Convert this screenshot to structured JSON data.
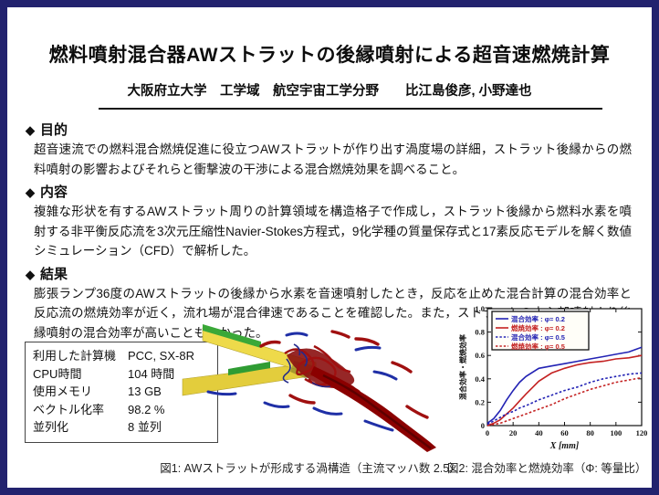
{
  "slide": {
    "title": "燃料噴射混合器AWストラットの後縁噴射による超音速燃焼計算",
    "authors": "大阪府立大学　工学域　航空宇宙工学分野　　比江島俊彦, 小野達也",
    "sections": [
      {
        "bullet": "◆",
        "heading": "目的",
        "body": "超音速流での燃料混合燃焼促進に役立つAWストラットが作り出す渦度場の詳細，ストラット後縁からの燃料噴射の影響およびそれらと衝撃波の干渉による混合燃焼効果を調べること。"
      },
      {
        "bullet": "◆",
        "heading": "内容",
        "body": "複雑な形状を有するAWストラット周りの計算領域を構造格子で作成し，ストラット後縁から燃料水素を噴射する非平衡反応流を3次元圧縮性Navier-Stokes方程式，9化学種の質量保存式と17素反応モデルを解く数値シミュレーション（CFD）で解析した。"
      },
      {
        "bullet": "◆",
        "heading": "結果",
        "body": "膨張ランプ36度のAWストラットの後縁から水素を音速噴射したとき，反応を止めた混合計算の混合効率と反応流の燃焼効率が近く，流れ場が混合律速であることを確認した。また，ストラットの中心部噴射より後縁噴射の混合効率が高いこともわかった。"
      }
    ],
    "stats_table": {
      "rows": [
        {
          "label": "利用した計算機",
          "value": "PCC, SX-8R"
        },
        {
          "label": "CPU時間",
          "value": "104 時間"
        },
        {
          "label": "使用メモリ",
          "value": "13 GB"
        },
        {
          "label": "ベクトル化率",
          "value": "98.2 %"
        },
        {
          "label": "並列化",
          "value": "8 並列"
        }
      ]
    },
    "figure1_caption": "図1: AWストラットが形成する渦構造（主流マッハ数 2.5）",
    "figure2_caption": "図2: 混合効率と燃焼効率（Φ: 等量比）"
  },
  "chart_data": {
    "type": "line",
    "title": "",
    "xlabel": "X [mm]",
    "ylabel": "混合効率・燃焼効率",
    "xlim": [
      0,
      120
    ],
    "ylim": [
      0,
      1.0
    ],
    "xticks": [
      0,
      20,
      40,
      60,
      80,
      100,
      120
    ],
    "yticks": [
      0,
      0.2,
      0.4,
      0.6,
      0.8,
      1.0
    ],
    "grid": false,
    "legend_position": "top-left",
    "x": [
      0,
      5,
      10,
      15,
      20,
      25,
      30,
      40,
      50,
      60,
      70,
      80,
      90,
      100,
      110,
      120
    ],
    "series": [
      {
        "name": "混合効率 : φ= 0.2",
        "color": "#2323b4",
        "style": "solid",
        "values": [
          0.02,
          0.06,
          0.13,
          0.22,
          0.3,
          0.37,
          0.42,
          0.49,
          0.51,
          0.53,
          0.55,
          0.57,
          0.59,
          0.61,
          0.63,
          0.67
        ]
      },
      {
        "name": "燃焼効率 : φ= 0.2",
        "color": "#c42222",
        "style": "solid",
        "values": [
          0.0,
          0.02,
          0.05,
          0.1,
          0.15,
          0.21,
          0.27,
          0.38,
          0.45,
          0.49,
          0.52,
          0.54,
          0.55,
          0.57,
          0.58,
          0.6
        ]
      },
      {
        "name": "混合効率 : φ= 0.5",
        "color": "#2323b4",
        "style": "dashed",
        "values": [
          0.01,
          0.04,
          0.07,
          0.1,
          0.12,
          0.15,
          0.17,
          0.22,
          0.26,
          0.3,
          0.33,
          0.37,
          0.4,
          0.42,
          0.44,
          0.45
        ]
      },
      {
        "name": "燃焼効率 : φ= 0.5",
        "color": "#c42222",
        "style": "dashed",
        "values": [
          0.0,
          0.01,
          0.02,
          0.04,
          0.06,
          0.08,
          0.1,
          0.14,
          0.18,
          0.23,
          0.27,
          0.31,
          0.34,
          0.37,
          0.39,
          0.41
        ]
      }
    ]
  }
}
